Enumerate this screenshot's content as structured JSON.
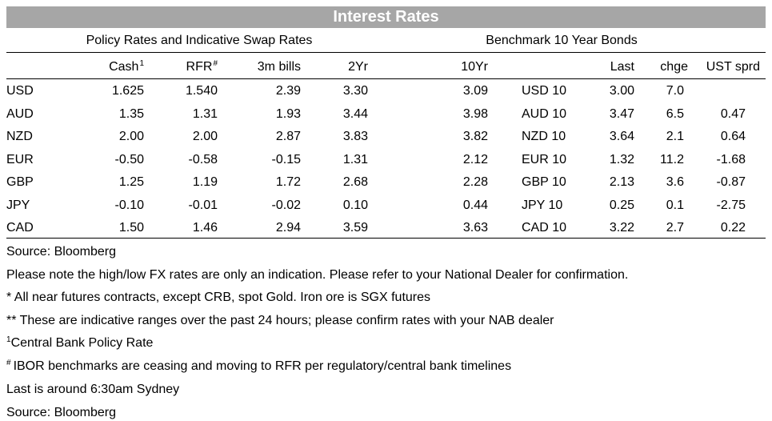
{
  "title": "Interest Rates",
  "sections": {
    "policy": "Policy Rates and Indicative Swap Rates",
    "bonds": "Benchmark 10 Year Bonds"
  },
  "headers": {
    "cash": "Cash",
    "cash_sup": "1",
    "rfr": "RFR",
    "rfr_sup": "#",
    "bills": "3m bills",
    "y2": "2Yr",
    "y10": "10Yr",
    "last": "Last",
    "chge": "chge",
    "ust": "UST sprd"
  },
  "rows": [
    {
      "ccy": "USD",
      "cash": "1.625",
      "rfr": "1.540",
      "bills": "2.39",
      "y2": "3.30",
      "y10": "3.09",
      "bond": "USD 10",
      "last": "3.00",
      "chge": "7.0",
      "ust": ""
    },
    {
      "ccy": "AUD",
      "cash": "1.35",
      "rfr": "1.31",
      "bills": "1.93",
      "y2": "3.44",
      "y10": "3.98",
      "bond": "AUD 10",
      "last": "3.47",
      "chge": "6.5",
      "ust": "0.47"
    },
    {
      "ccy": "NZD",
      "cash": "2.00",
      "rfr": "2.00",
      "bills": "2.87",
      "y2": "3.83",
      "y10": "3.82",
      "bond": "NZD 10",
      "last": "3.64",
      "chge": "2.1",
      "ust": "0.64"
    },
    {
      "ccy": "EUR",
      "cash": "-0.50",
      "rfr": "-0.58",
      "bills": "-0.15",
      "y2": "1.31",
      "y10": "2.12",
      "bond": "EUR 10",
      "last": "1.32",
      "chge": "11.2",
      "ust": "-1.68"
    },
    {
      "ccy": "GBP",
      "cash": "1.25",
      "rfr": "1.19",
      "bills": "1.72",
      "y2": "2.68",
      "y10": "2.28",
      "bond": "GBP 10",
      "last": "2.13",
      "chge": "3.6",
      "ust": "-0.87"
    },
    {
      "ccy": "JPY",
      "cash": "-0.10",
      "rfr": "-0.01",
      "bills": "-0.02",
      "y2": "0.10",
      "y10": "0.44",
      "bond": "JPY 10",
      "last": "0.25",
      "chge": "0.1",
      "ust": "-2.75"
    },
    {
      "ccy": "CAD",
      "cash": "1.50",
      "rfr": "1.46",
      "bills": "2.94",
      "y2": "3.59",
      "y10": "3.63",
      "bond": "CAD 10",
      "last": "3.22",
      "chge": "2.7",
      "ust": "0.22"
    }
  ],
  "notes": {
    "source1": "Source: Bloomberg",
    "fx": "Please note the high/low FX rates are only an indication. Please refer to your National Dealer for confirmation.",
    "futures": "* All near futures contracts, except CRB, spot Gold.  Iron ore is SGX futures",
    "ranges": "** These are indicative ranges over the past 24 hours; please confirm rates with your NAB dealer",
    "cb_sup": "1",
    "cb_text": "Central Bank Policy Rate",
    "ibor_sup": "#",
    "ibor_text": "IBOR benchmarks are ceasing and moving to RFR per regulatory/central bank timelines",
    "last": "Last is around 6:30am Sydney",
    "source2": "Source: Bloomberg"
  }
}
